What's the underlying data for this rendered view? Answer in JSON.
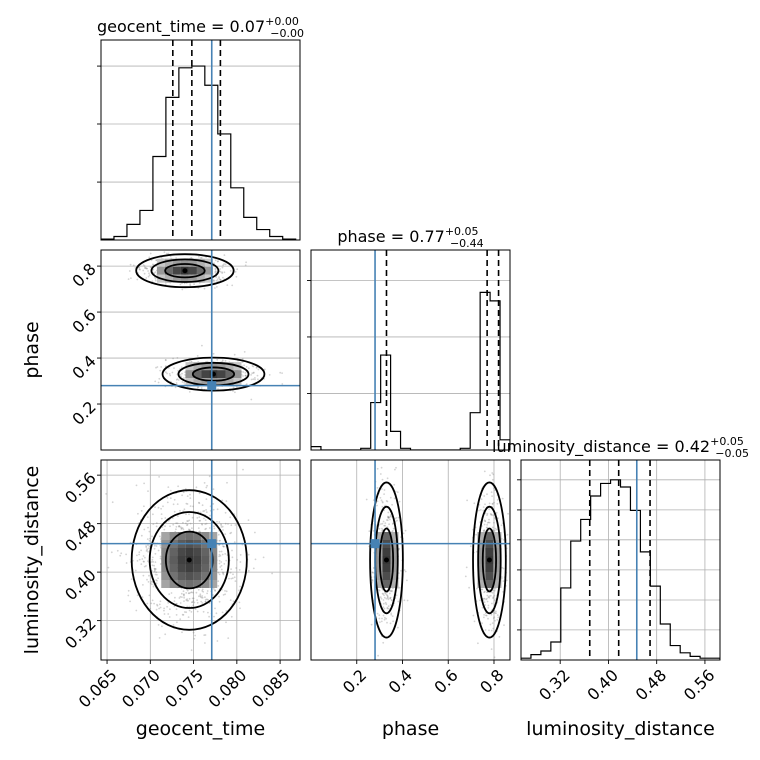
{
  "chart_data": [
    {
      "type": "histogram",
      "panel": "geocent_time",
      "title": {
        "param": "geocent_time",
        "median": "0.07",
        "plus": "+0.00",
        "minus": "−0.00"
      },
      "xlim": [
        0.0643,
        0.0873
      ],
      "xticks": [],
      "xtick_labels": [],
      "ylim": [
        0,
        1.15
      ],
      "yticks": [
        0.333,
        0.667,
        1.0
      ],
      "bin_edges": [
        0.0643,
        0.0658,
        0.0673,
        0.0688,
        0.0703,
        0.0718,
        0.0733,
        0.0748,
        0.0763,
        0.0778,
        0.0793,
        0.0808,
        0.0823,
        0.0838,
        0.0853,
        0.0868
      ],
      "counts": [
        0.005,
        0.02,
        0.09,
        0.17,
        0.48,
        0.82,
        0.99,
        1.0,
        0.89,
        0.61,
        0.3,
        0.13,
        0.06,
        0.02,
        0.005
      ],
      "quantiles": [
        0.0726,
        0.0748,
        0.0781
      ],
      "truth": 0.0771
    },
    {
      "type": "histogram",
      "panel": "phase",
      "title": {
        "param": "phase",
        "median": "0.77",
        "plus": "+0.05",
        "minus": "−0.44"
      },
      "xlim": [
        0.0,
        0.87
      ],
      "xticks": [],
      "xtick_labels": [],
      "ylim": [
        0,
        1.18
      ],
      "yticks": [
        0.333,
        0.667,
        1.0
      ],
      "bin_edges": [
        0.0,
        0.0435,
        0.087,
        0.1305,
        0.174,
        0.2175,
        0.261,
        0.3045,
        0.348,
        0.3915,
        0.435,
        0.4785,
        0.522,
        0.5655,
        0.609,
        0.6525,
        0.696,
        0.7395,
        0.783,
        0.8265,
        0.87
      ],
      "counts": [
        0.02,
        0.0,
        0.0,
        0.0,
        0.0,
        0.01,
        0.28,
        0.56,
        0.11,
        0.01,
        0.0,
        0.0,
        0.0,
        0.0,
        0.0,
        0.01,
        0.22,
        0.93,
        0.88,
        0.06
      ],
      "quantiles": [
        0.33,
        0.77,
        0.82
      ],
      "truth": 0.28
    },
    {
      "type": "histogram",
      "panel": "luminosity_distance",
      "title": {
        "param": "luminosity_distance",
        "median": "0.42",
        "plus": "+0.05",
        "minus": "−0.05"
      },
      "xlim": [
        0.255,
        0.585
      ],
      "xticks": [
        0.32,
        0.4,
        0.48,
        0.56
      ],
      "xtick_labels": [
        "0.32",
        "0.40",
        "0.48",
        "0.56"
      ],
      "xlabel": "luminosity_distance",
      "ylim": [
        0,
        1.11
      ],
      "yticks": [
        0.167,
        0.333,
        0.5,
        0.667,
        0.833,
        1.0
      ],
      "bin_edges": [
        0.255,
        0.2715,
        0.288,
        0.3045,
        0.321,
        0.3375,
        0.354,
        0.3705,
        0.387,
        0.4035,
        0.42,
        0.4365,
        0.453,
        0.4695,
        0.486,
        0.5025,
        0.519,
        0.5355,
        0.552,
        0.5685,
        0.585
      ],
      "counts": [
        0.01,
        0.03,
        0.05,
        0.1,
        0.4,
        0.66,
        0.78,
        0.91,
        0.98,
        1.0,
        0.96,
        0.83,
        0.6,
        0.41,
        0.2,
        0.08,
        0.04,
        0.02,
        0.01,
        0.01
      ],
      "quantiles": [
        0.369,
        0.417,
        0.469
      ],
      "truth": 0.447
    },
    {
      "type": "scatter",
      "panel": "phase_vs_geocent_time",
      "xparam": "geocent_time",
      "yparam": "phase",
      "xlim": [
        0.0643,
        0.0873
      ],
      "ylim": [
        0.0,
        0.87
      ],
      "yticks": [
        0.2,
        0.4,
        0.6,
        0.8
      ],
      "ytick_labels": [
        "0.2",
        "0.4",
        "0.6",
        "0.8"
      ],
      "ylabel": "phase",
      "modes": [
        {
          "cx": 0.074,
          "cy": 0.78,
          "sx": 0.0022,
          "sy": 0.028,
          "weight": 0.5
        },
        {
          "cx": 0.0773,
          "cy": 0.33,
          "sx": 0.0023,
          "sy": 0.028,
          "weight": 0.5
        }
      ],
      "truth": [
        0.0771,
        0.28
      ]
    },
    {
      "type": "scatter",
      "panel": "luminosity_distance_vs_geocent_time",
      "xparam": "geocent_time",
      "yparam": "luminosity_distance",
      "xlim": [
        0.0643,
        0.0873
      ],
      "ylim": [
        0.255,
        0.585
      ],
      "xticks": [
        0.065,
        0.07,
        0.075,
        0.08,
        0.085
      ],
      "xtick_labels": [
        "0.065",
        "0.070",
        "0.075",
        "0.080",
        "0.085"
      ],
      "yticks": [
        0.32,
        0.4,
        0.48,
        0.56
      ],
      "ytick_labels": [
        "0.32",
        "0.40",
        "0.48",
        "0.56"
      ],
      "xlabel": "geocent_time",
      "ylabel": "luminosity_distance",
      "modes": [
        {
          "cx": 0.0745,
          "cy": 0.42,
          "sx": 0.0026,
          "sy": 0.045,
          "weight": 1.0
        }
      ],
      "truth": [
        0.0771,
        0.447
      ]
    },
    {
      "type": "scatter",
      "panel": "luminosity_distance_vs_phase",
      "xparam": "phase",
      "yparam": "luminosity_distance",
      "xlim": [
        0.0,
        0.87
      ],
      "ylim": [
        0.255,
        0.585
      ],
      "xticks": [
        0.2,
        0.4,
        0.6,
        0.8
      ],
      "xtick_labels": [
        "0.2",
        "0.4",
        "0.6",
        "0.8"
      ],
      "xlabel": "phase",
      "modes": [
        {
          "cx": 0.33,
          "cy": 0.42,
          "sx": 0.028,
          "sy": 0.05,
          "weight": 0.5
        },
        {
          "cx": 0.78,
          "cy": 0.42,
          "sx": 0.028,
          "sy": 0.05,
          "weight": 0.5
        }
      ],
      "truth": [
        0.28,
        0.447
      ]
    }
  ],
  "colors": {
    "truth": "#4682b4",
    "hist": "#000000",
    "grid": "#b0b0b0",
    "points": "#808080"
  }
}
